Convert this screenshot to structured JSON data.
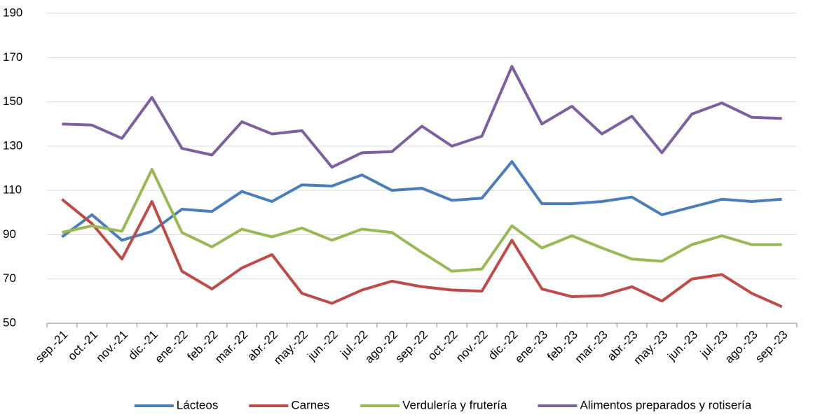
{
  "chart_data": {
    "type": "line",
    "categories": [
      "sep.-21",
      "oct.-21",
      "nov.-21",
      "dic.-21",
      "ene.-22",
      "feb.-22",
      "mar.-22",
      "abr.-22",
      "may.-22",
      "jun.-22",
      "jul.-22",
      "ago.-22",
      "sep.-22",
      "oct.-22",
      "nov.-22",
      "dic.-22",
      "ene.-23",
      "feb.-23",
      "mar.-23",
      "abr.-23",
      "may.-23",
      "jun.-23",
      "jul.-23",
      "ago.-23",
      "sep.-23"
    ],
    "series": [
      {
        "name": "Lácteos",
        "color": "#4a7ebb",
        "values": [
          89,
          99,
          87.5,
          91.5,
          101.5,
          100.5,
          109.5,
          105,
          112.5,
          112,
          117,
          110,
          111,
          105.5,
          106.5,
          123,
          104,
          104,
          105,
          107,
          99,
          102.5,
          106,
          105,
          106
        ]
      },
      {
        "name": "Carnes",
        "color": "#be4b48",
        "values": [
          106,
          95,
          79,
          105,
          73.5,
          65.5,
          75,
          81,
          63.5,
          59,
          65,
          69,
          66.5,
          65,
          64.5,
          87.5,
          65.5,
          62,
          62.5,
          66.5,
          60,
          70,
          72,
          63.5,
          57.5
        ]
      },
      {
        "name": "Verdulería y frutería",
        "color": "#98b954",
        "values": [
          91,
          94,
          91.5,
          119.5,
          91,
          84.5,
          92.5,
          89,
          93,
          87.5,
          92.5,
          91,
          82,
          73.5,
          74.5,
          94,
          84,
          89.5,
          84,
          79,
          78,
          85.5,
          89.5,
          85.5,
          85.5
        ]
      },
      {
        "name": "Alimentos preparados y rotisería",
        "color": "#7d60a0",
        "values": [
          140,
          139.5,
          133.5,
          152,
          129,
          126,
          141,
          135.5,
          137,
          120.5,
          127,
          127.5,
          139,
          130,
          134.5,
          166,
          140,
          148,
          135.5,
          143.5,
          127,
          144.5,
          149.5,
          143,
          142.5
        ]
      }
    ],
    "ylim": [
      50,
      190
    ],
    "yticks": [
      50,
      70,
      90,
      110,
      130,
      150,
      170,
      190
    ],
    "grid": true,
    "legend": "bottom"
  }
}
